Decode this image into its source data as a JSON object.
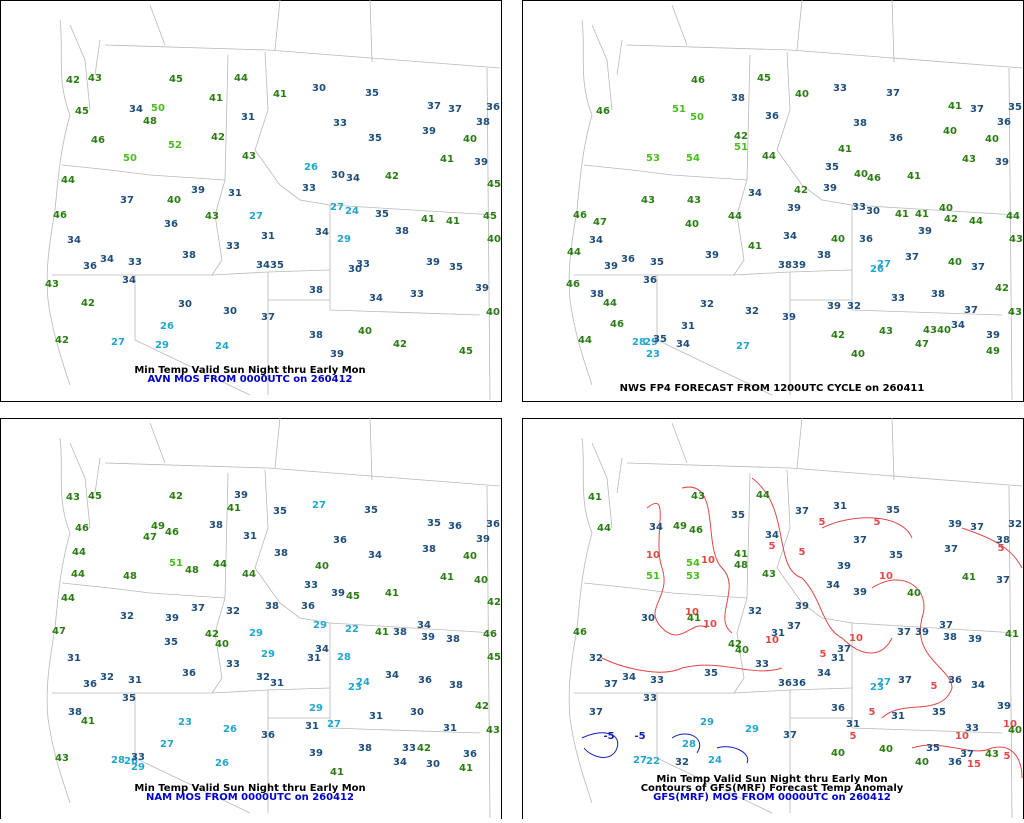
{
  "panels": [
    {
      "title": "Min Temp Valid Sun Night thru Early Mon",
      "subtitle": "AVN MOS FROM 0000UTC on 260412",
      "stations": [
        42,
        43,
        45,
        44,
        30,
        35,
        37,
        37,
        36,
        45,
        34,
        50,
        41,
        41,
        31,
        38,
        33,
        35,
        39,
        40,
        42,
        48,
        46,
        50,
        52,
        43,
        26,
        30,
        34,
        42,
        41,
        39,
        45,
        44,
        37,
        39,
        31,
        33,
        40,
        46,
        36,
        43,
        27,
        27,
        24,
        35,
        41,
        41,
        45,
        34,
        38,
        31,
        33,
        34,
        29,
        38,
        40,
        36,
        34,
        33,
        34,
        35,
        30,
        33,
        39,
        35,
        43,
        34,
        42,
        30,
        30,
        37,
        38,
        34,
        33,
        39,
        40,
        26,
        27,
        29,
        24,
        42,
        38,
        40,
        42,
        39,
        45
      ]
    },
    {
      "title": "NWS FP4 FORECAST FROM 1200UTC CYCLE on 260411",
      "stations": [
        46,
        45,
        33,
        37,
        38,
        40,
        41,
        37,
        35,
        46,
        51,
        50,
        36,
        36,
        38,
        36,
        40,
        40,
        42,
        51,
        53,
        54,
        44,
        41,
        35,
        40,
        46,
        41,
        43,
        39,
        42,
        39,
        34,
        43,
        43,
        47,
        46,
        40,
        44,
        39,
        33,
        30,
        41,
        41,
        40,
        42,
        44,
        44,
        34,
        43,
        39,
        34,
        41,
        40,
        36,
        39,
        44,
        39,
        36,
        35,
        38,
        39,
        38,
        26,
        27,
        37,
        40,
        37,
        46,
        36,
        38,
        44,
        32,
        32,
        39,
        39,
        32,
        33,
        38,
        37,
        42,
        43,
        46,
        31,
        28,
        29,
        35,
        23,
        34,
        27,
        44,
        42,
        43,
        43,
        40,
        34,
        47,
        40,
        39,
        49
      ]
    },
    {
      "title": "Min Temp Valid Sun Night thru Early Mon",
      "subtitle": "NAM MOS FROM 0000UTC on 260412",
      "stations": [
        43,
        45,
        42,
        39,
        41,
        35,
        27,
        35,
        35,
        36,
        36,
        46,
        47,
        49,
        46,
        38,
        31,
        38,
        36,
        34,
        38,
        40,
        39,
        44,
        48,
        51,
        48,
        44,
        44,
        40,
        44,
        41,
        40,
        42,
        33,
        39,
        45,
        41,
        44,
        39,
        37,
        32,
        38,
        36,
        32,
        47,
        35,
        42,
        29,
        29,
        22,
        41,
        38,
        34,
        39,
        38,
        46,
        31,
        36,
        40,
        33,
        29,
        34,
        31,
        28,
        45,
        32,
        31,
        32,
        31,
        23,
        24,
        34,
        36,
        38,
        36,
        35,
        38,
        41,
        23,
        26,
        36,
        29,
        31,
        27,
        31,
        30,
        31,
        42,
        43,
        27,
        28,
        26,
        33,
        29,
        26,
        43,
        39,
        38,
        33,
        42,
        34,
        30,
        36,
        41,
        41
      ]
    },
    {
      "title": "Min Temp Valid Sun Night thru Early Mon",
      "contour_title": "Contours of GFS(MRF) Forecast Temp Anomaly",
      "subtitle": "GFS(MRF) MOS FROM 0000UTC on 260412",
      "stations": [
        41,
        43,
        44,
        31,
        35,
        39,
        37,
        32,
        44,
        34,
        49,
        46,
        35,
        34,
        37,
        37,
        35,
        37,
        38,
        54,
        41,
        48,
        51,
        53,
        43,
        39,
        34,
        39,
        40,
        41,
        37,
        46,
        30,
        41,
        32,
        37,
        39,
        31,
        37,
        39,
        37,
        38,
        39,
        41,
        32,
        35,
        42,
        40,
        33,
        37,
        31,
        36,
        36,
        34,
        23,
        27,
        37,
        36,
        34,
        37,
        34,
        33,
        33,
        37,
        29,
        29,
        37,
        36,
        31,
        31,
        35,
        33,
        39,
        40,
        28,
        27,
        22,
        32,
        24,
        40,
        40,
        35,
        43,
        40,
        36,
        37
      ],
      "contour_labels": [
        5,
        5,
        10,
        5,
        10,
        5,
        5,
        10,
        10,
        10,
        10,
        5,
        10,
        5,
        5,
        10,
        5,
        15,
        -5,
        -5,
        5,
        10
      ]
    }
  ]
}
